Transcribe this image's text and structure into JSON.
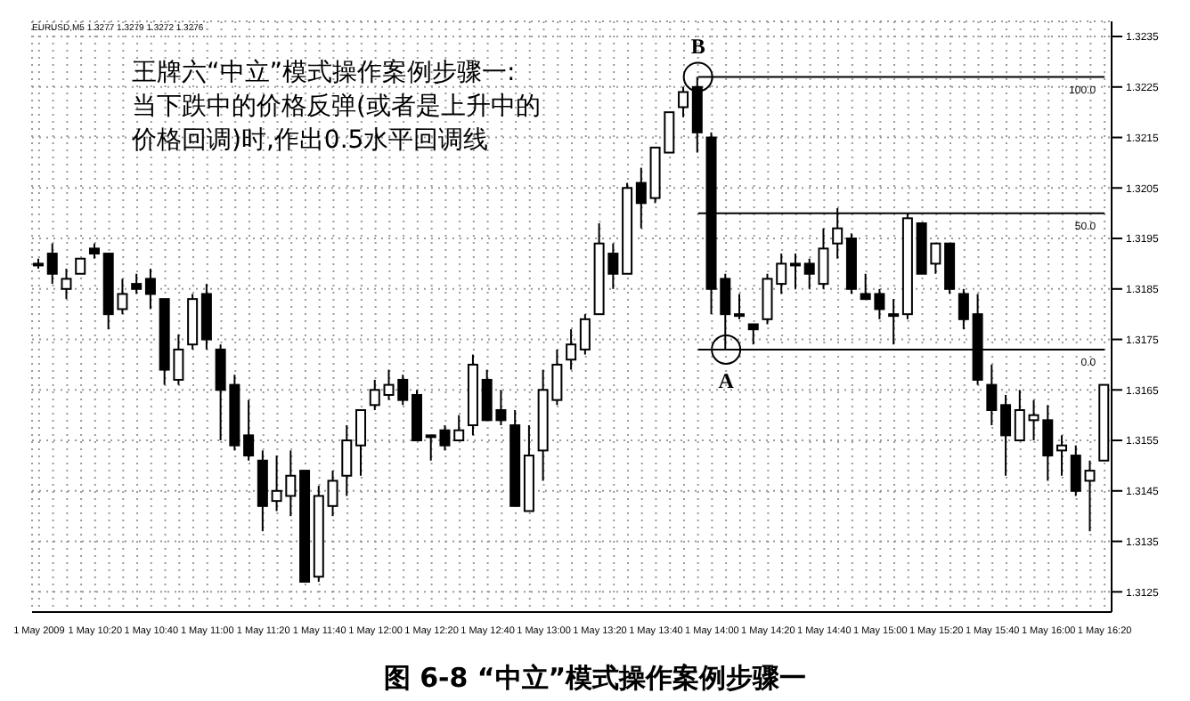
{
  "chart_data": {
    "type": "candlestick",
    "title": "图 6-8 “中立”模式操作案例步骤一",
    "categories": [
      "1 May 2009",
      null,
      null,
      null,
      "1 May 10:20",
      null,
      null,
      null,
      "1 May 10:40",
      null,
      null,
      null,
      "1 May 11:00",
      null,
      null,
      null,
      "1 May 11:20",
      null,
      null,
      null,
      "1 May 11:40",
      null,
      null,
      null,
      "1 May 12:00",
      null,
      null,
      null,
      "1 May 12:20",
      null,
      null,
      null,
      "1 May 12:40",
      null,
      null,
      null,
      "1 May 13:00",
      null,
      null,
      null,
      "1 May 13:20",
      null,
      null,
      null,
      "1 May 13:40",
      null,
      null,
      null,
      "1 May 14:00",
      null,
      null,
      null,
      "1 May 14:20",
      null,
      null,
      null,
      "1 May 14:40",
      null,
      null,
      null,
      "1 May 15:00",
      null,
      null,
      null,
      "1 May 15:20",
      null,
      null,
      null,
      "1 May 15:40",
      null,
      null,
      null,
      "1 May 16:00",
      null,
      null,
      null,
      "1 May 16:20"
    ],
    "ohlc": [
      [
        1.319,
        1.3191,
        1.3189,
        1.319
      ],
      [
        1.3192,
        1.3194,
        1.3186,
        1.3188
      ],
      [
        1.3185,
        1.3189,
        1.3183,
        1.3187
      ],
      [
        1.3188,
        1.3191,
        1.3188,
        1.3191
      ],
      [
        1.3193,
        1.3194,
        1.3191,
        1.3192
      ],
      [
        1.3192,
        1.3192,
        1.3177,
        1.318
      ],
      [
        1.3181,
        1.3187,
        1.318,
        1.3184
      ],
      [
        1.3186,
        1.3188,
        1.3184,
        1.3185
      ],
      [
        1.3187,
        1.3189,
        1.3181,
        1.3184
      ],
      [
        1.3183,
        1.3183,
        1.3166,
        1.3169
      ],
      [
        1.3167,
        1.3176,
        1.3166,
        1.3173
      ],
      [
        1.3174,
        1.3184,
        1.3173,
        1.3183
      ],
      [
        1.3184,
        1.3186,
        1.3173,
        1.3175
      ],
      [
        1.3173,
        1.3174,
        1.3155,
        1.3165
      ],
      [
        1.3166,
        1.3168,
        1.3153,
        1.3154
      ],
      [
        1.3156,
        1.3163,
        1.3151,
        1.3152
      ],
      [
        1.3151,
        1.3153,
        1.3137,
        1.3142
      ],
      [
        1.3143,
        1.3152,
        1.3141,
        1.3145
      ],
      [
        1.3144,
        1.3153,
        1.314,
        1.3148
      ],
      [
        1.3149,
        1.3149,
        1.3127,
        1.3127
      ],
      [
        1.3128,
        1.3146,
        1.3127,
        1.3144
      ],
      [
        1.3142,
        1.3149,
        1.314,
        1.3147
      ],
      [
        1.3148,
        1.3158,
        1.3144,
        1.3155
      ],
      [
        1.3154,
        1.3161,
        1.3148,
        1.3161
      ],
      [
        1.3162,
        1.3167,
        1.3161,
        1.3165
      ],
      [
        1.3164,
        1.3169,
        1.3163,
        1.3166
      ],
      [
        1.3167,
        1.3168,
        1.3162,
        1.3163
      ],
      [
        1.3164,
        1.3165,
        1.3155,
        1.3155
      ],
      [
        1.3156,
        1.3156,
        1.3151,
        1.3156
      ],
      [
        1.3157,
        1.3158,
        1.3153,
        1.3154
      ],
      [
        1.3155,
        1.316,
        1.3155,
        1.3157
      ],
      [
        1.3158,
        1.3172,
        1.3156,
        1.317
      ],
      [
        1.3167,
        1.3169,
        1.3159,
        1.3159
      ],
      [
        1.3161,
        1.3165,
        1.3158,
        1.3159
      ],
      [
        1.3158,
        1.3161,
        1.3142,
        1.3142
      ],
      [
        1.3141,
        1.3158,
        1.3141,
        1.3152
      ],
      [
        1.3153,
        1.3169,
        1.3147,
        1.3165
      ],
      [
        1.3163,
        1.3173,
        1.3162,
        1.317
      ],
      [
        1.3171,
        1.3177,
        1.3169,
        1.3174
      ],
      [
        1.3173,
        1.318,
        1.3172,
        1.3179
      ],
      [
        1.318,
        1.3198,
        1.318,
        1.3194
      ],
      [
        1.3192,
        1.3194,
        1.3185,
        1.3188
      ],
      [
        1.3188,
        1.3206,
        1.3188,
        1.3205
      ],
      [
        1.3206,
        1.3209,
        1.3197,
        1.3202
      ],
      [
        1.3203,
        1.3213,
        1.3202,
        1.3213
      ],
      [
        1.3212,
        1.322,
        1.3212,
        1.322
      ],
      [
        1.3221,
        1.3225,
        1.3219,
        1.3224
      ],
      [
        1.3225,
        1.3227,
        1.3212,
        1.3216
      ],
      [
        1.3215,
        1.3216,
        1.318,
        1.3185
      ],
      [
        1.3187,
        1.3188,
        1.3173,
        1.318
      ],
      [
        1.318,
        1.3184,
        1.3179,
        1.318
      ],
      [
        1.3178,
        1.3178,
        1.3174,
        1.3177
      ],
      [
        1.3179,
        1.3188,
        1.3178,
        1.3187
      ],
      [
        1.3186,
        1.3192,
        1.3184,
        1.319
      ],
      [
        1.319,
        1.3192,
        1.3185,
        1.319
      ],
      [
        1.319,
        1.3191,
        1.3185,
        1.3188
      ],
      [
        1.3186,
        1.3197,
        1.3185,
        1.3193
      ],
      [
        1.3194,
        1.3201,
        1.3191,
        1.3197
      ],
      [
        1.3195,
        1.3196,
        1.3184,
        1.3185
      ],
      [
        1.3184,
        1.3188,
        1.3183,
        1.3183
      ],
      [
        1.3184,
        1.3185,
        1.3179,
        1.3181
      ],
      [
        1.318,
        1.3183,
        1.3174,
        1.318
      ],
      [
        1.318,
        1.32,
        1.3179,
        1.3199
      ],
      [
        1.3198,
        1.3198,
        1.3188,
        1.3188
      ],
      [
        1.319,
        1.3194,
        1.3188,
        1.3194
      ],
      [
        1.3194,
        1.3194,
        1.3184,
        1.3185
      ],
      [
        1.3184,
        1.3185,
        1.3177,
        1.3179
      ],
      [
        1.318,
        1.3184,
        1.3166,
        1.3167
      ],
      [
        1.3166,
        1.317,
        1.3158,
        1.3161
      ],
      [
        1.3162,
        1.3164,
        1.3148,
        1.3156
      ],
      [
        1.3155,
        1.3165,
        1.3155,
        1.3161
      ],
      [
        1.3159,
        1.3163,
        1.3155,
        1.316
      ],
      [
        1.3159,
        1.3162,
        1.3147,
        1.3152
      ],
      [
        1.3153,
        1.3156,
        1.3148,
        1.3154
      ],
      [
        1.3152,
        1.3154,
        1.3144,
        1.3145
      ],
      [
        1.3147,
        1.3151,
        1.3137,
        1.3149
      ],
      [
        1.3151,
        1.3166,
        1.3151,
        1.3166
      ]
    ],
    "color": "#000000",
    "ylim": [
      1.3121,
      1.3238
    ],
    "yticks": [
      1.3125,
      1.3135,
      1.3145,
      1.3155,
      1.3165,
      1.3175,
      1.3185,
      1.3195,
      1.3205,
      1.3215,
      1.3225,
      1.3235
    ],
    "grid": true,
    "ref_lines": [
      {
        "axis": "y",
        "value": 1.3227
      },
      {
        "axis": "y",
        "value": 1.32
      },
      {
        "axis": "y",
        "value": 1.3173
      }
    ],
    "annotations": [
      "EURUSD,M5 1.3277 1.3279 1.3272 1.3276",
      "王牌六“中立”模式操作案例步骤一:",
      "当下跌中的价格反弹(或者是上升中的",
      "价格回调)时,作出0.5水平回调线",
      "100.0",
      "50.0",
      "0.0",
      {
        "text": "B",
        "y": 1.3227
      },
      {
        "text": "A",
        "y": 1.3173
      }
    ]
  }
}
